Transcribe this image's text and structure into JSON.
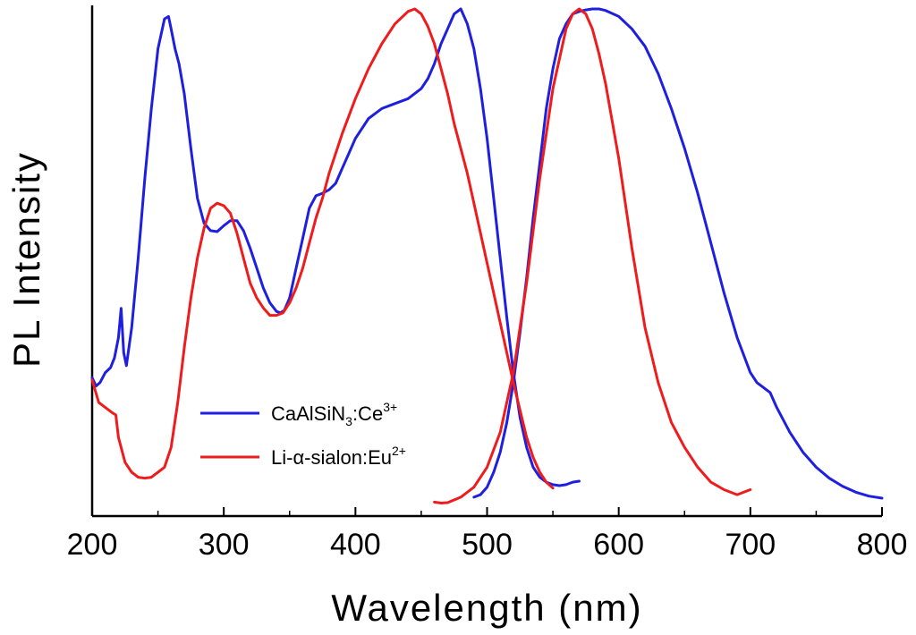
{
  "chart_data": {
    "type": "line",
    "title": "",
    "xlabel": "Wavelength (nm)",
    "ylabel": "PL Intensity",
    "xlim": [
      200,
      800
    ],
    "ylim": [
      0,
      1.0
    ],
    "x_ticks": [
      200,
      300,
      400,
      500,
      600,
      700,
      800
    ],
    "x_tick_labels": [
      "200",
      "300",
      "400",
      "500",
      "600",
      "700",
      "800"
    ],
    "y_ticks_shown": false,
    "grid": false,
    "legend_position": "lower-left",
    "series": [
      {
        "name": "CaAlSiN3:Ce3+",
        "legend": {
          "base": "CaAlSiN",
          "sub": "3",
          "mid": ":Ce",
          "sup": "3+"
        },
        "color": "#1f1fe0",
        "segments": [
          {
            "role": "excitation",
            "x": [
              200,
              203,
              206,
              210,
              214,
              217,
              220,
              222,
              224,
              226,
              230,
              235,
              240,
              245,
              250,
              255,
              258,
              260,
              263,
              266,
              270,
              275,
              280,
              285,
              290,
              295,
              300,
              305,
              310,
              315,
              320,
              325,
              330,
              335,
              340,
              343,
              346,
              350,
              355,
              360,
              365,
              370,
              375,
              380,
              385,
              390,
              395,
              400,
              410,
              420,
              430,
              440,
              450,
              455,
              460,
              465,
              470,
              475,
              480,
              485,
              490,
              495,
              500,
              505,
              510,
              515,
              520,
              525,
              530,
              535,
              540,
              545,
              550,
              555,
              560,
              565,
              570
            ],
            "y": [
              0.26,
              0.243,
              0.25,
              0.27,
              0.28,
              0.3,
              0.34,
              0.399,
              0.31,
              0.284,
              0.36,
              0.5,
              0.66,
              0.8,
              0.92,
              0.98,
              0.985,
              0.96,
              0.92,
              0.89,
              0.83,
              0.72,
              0.62,
              0.57,
              0.555,
              0.553,
              0.565,
              0.575,
              0.575,
              0.555,
              0.52,
              0.48,
              0.44,
              0.41,
              0.393,
              0.39,
              0.395,
              0.42,
              0.48,
              0.54,
              0.6,
              0.625,
              0.63,
              0.637,
              0.65,
              0.68,
              0.71,
              0.74,
              0.78,
              0.8,
              0.81,
              0.82,
              0.84,
              0.86,
              0.89,
              0.93,
              0.96,
              0.99,
              1.0,
              0.97,
              0.92,
              0.84,
              0.74,
              0.62,
              0.5,
              0.38,
              0.27,
              0.18,
              0.12,
              0.08,
              0.06,
              0.05,
              0.045,
              0.043,
              0.045,
              0.05,
              0.052
            ]
          },
          {
            "role": "emission",
            "x": [
              490,
              495,
              500,
              505,
              510,
              515,
              520,
              525,
              530,
              535,
              540,
              545,
              550,
              555,
              560,
              565,
              570,
              575,
              580,
              585,
              590,
              600,
              610,
              620,
              630,
              640,
              650,
              660,
              670,
              680,
              690,
              700,
              705,
              710,
              715,
              720,
              730,
              740,
              750,
              760,
              770,
              780,
              790,
              800
            ],
            "y": [
              0.02,
              0.025,
              0.04,
              0.07,
              0.11,
              0.17,
              0.25,
              0.35,
              0.46,
              0.58,
              0.69,
              0.8,
              0.88,
              0.94,
              0.97,
              0.99,
              0.995,
              0.998,
              1.0,
              1.0,
              0.997,
              0.985,
              0.96,
              0.925,
              0.87,
              0.8,
              0.72,
              0.63,
              0.53,
              0.43,
              0.34,
              0.27,
              0.25,
              0.24,
              0.23,
              0.2,
              0.15,
              0.11,
              0.08,
              0.058,
              0.042,
              0.03,
              0.022,
              0.018
            ]
          }
        ]
      },
      {
        "name": "Li-α-sialon:Eu2+",
        "legend": {
          "base": "Li-α-sialon:Eu",
          "sup": "2+"
        },
        "color": "#ee1c1c",
        "segments": [
          {
            "role": "excitation",
            "x": [
              200,
              205,
              210,
              215,
              218,
              220,
              225,
              230,
              235,
              240,
              245,
              250,
              255,
              260,
              265,
              270,
              275,
              280,
              285,
              290,
              295,
              300,
              305,
              310,
              315,
              320,
              325,
              330,
              335,
              340,
              345,
              350,
              355,
              360,
              365,
              370,
              375,
              380,
              390,
              400,
              410,
              420,
              430,
              440,
              445,
              450,
              455,
              460,
              465,
              470,
              475,
              480,
              485,
              490,
              500,
              510,
              520,
              530,
              535,
              540,
              545,
              550
            ],
            "y": [
              0.255,
              0.21,
              0.2,
              0.19,
              0.185,
              0.14,
              0.09,
              0.07,
              0.06,
              0.058,
              0.06,
              0.07,
              0.08,
              0.12,
              0.21,
              0.32,
              0.42,
              0.5,
              0.56,
              0.6,
              0.61,
              0.605,
              0.59,
              0.55,
              0.5,
              0.45,
              0.42,
              0.4,
              0.385,
              0.385,
              0.39,
              0.41,
              0.44,
              0.48,
              0.53,
              0.58,
              0.62,
              0.67,
              0.75,
              0.82,
              0.88,
              0.93,
              0.97,
              0.995,
              1.0,
              0.99,
              0.965,
              0.93,
              0.88,
              0.83,
              0.77,
              0.72,
              0.67,
              0.61,
              0.49,
              0.37,
              0.25,
              0.14,
              0.1,
              0.07,
              0.05,
              0.038
            ]
          },
          {
            "role": "emission",
            "x": [
              460,
              465,
              470,
              480,
              490,
              500,
              510,
              520,
              530,
              540,
              550,
              560,
              565,
              570,
              575,
              580,
              585,
              590,
              600,
              610,
              620,
              630,
              640,
              650,
              660,
              670,
              680,
              690,
              700
            ],
            "y": [
              0.01,
              0.008,
              0.009,
              0.02,
              0.04,
              0.08,
              0.15,
              0.27,
              0.45,
              0.66,
              0.84,
              0.96,
              0.99,
              1.0,
              0.99,
              0.96,
              0.91,
              0.85,
              0.7,
              0.52,
              0.36,
              0.25,
              0.17,
              0.12,
              0.08,
              0.05,
              0.035,
              0.025,
              0.035
            ]
          }
        ]
      }
    ]
  }
}
